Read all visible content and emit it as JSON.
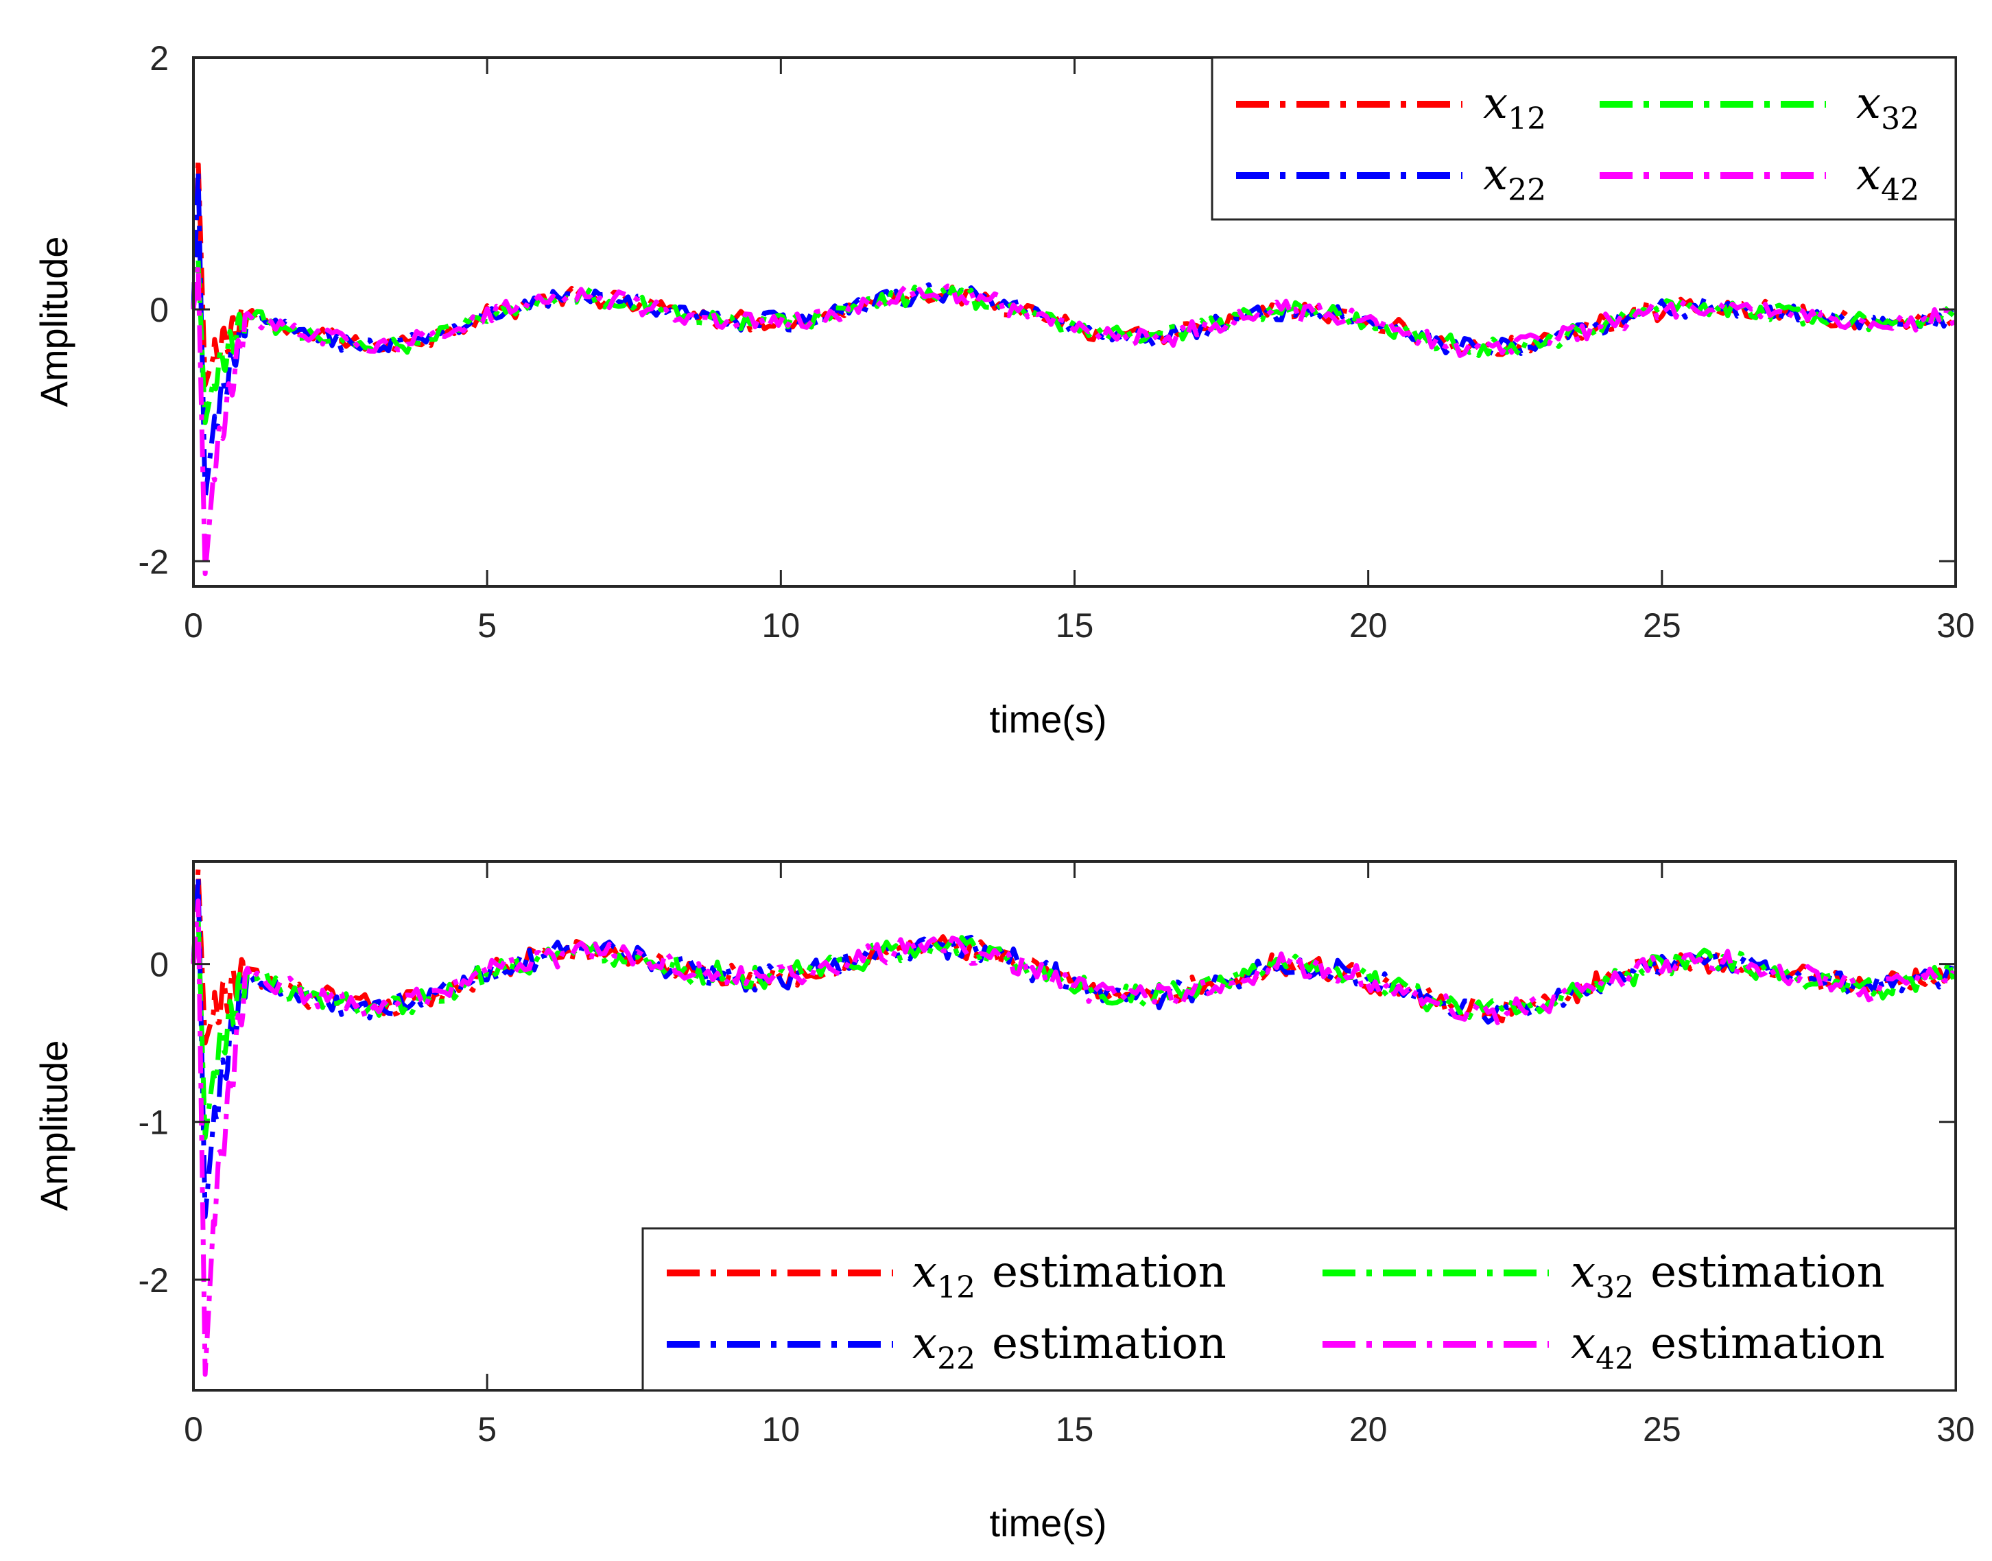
{
  "chart_data": [
    {
      "type": "line",
      "title": "",
      "xlabel": "time(s)",
      "ylabel": "Amplitude",
      "xlim": [
        0,
        30
      ],
      "ylim": [
        -2.2,
        2
      ],
      "xticks": [
        0,
        5,
        10,
        15,
        20,
        25,
        30
      ],
      "xtick_labels": [
        "0",
        "5",
        "10",
        "15",
        "20",
        "25",
        "30"
      ],
      "yticks": [
        -2,
        0,
        2
      ],
      "ytick_labels": [
        "-2",
        "0",
        "2"
      ],
      "grid": false,
      "legend_position": "top-right",
      "legend_columns": 2,
      "series": [
        {
          "name": "x12",
          "symbol": "x",
          "subscript": "12",
          "suffix": "",
          "color": "#ff0000",
          "line_style": "dash-dot"
        },
        {
          "name": "x22",
          "symbol": "x",
          "subscript": "22",
          "suffix": "",
          "color": "#0000ff",
          "line_style": "dash-dot"
        },
        {
          "name": "x32",
          "symbol": "x",
          "subscript": "32",
          "suffix": "",
          "color": "#00ff00",
          "line_style": "dash-dot"
        },
        {
          "name": "x42",
          "symbol": "x",
          "subscript": "42",
          "suffix": "",
          "color": "#ff00ff",
          "line_style": "dash-dot"
        }
      ],
      "trend": {
        "x": [
          0,
          0.8,
          1.5,
          2.5,
          3.2,
          4.0,
          5.0,
          6.0,
          6.8,
          7.5,
          8.5,
          9.5,
          10.5,
          11.5,
          12.3,
          12.8,
          13.5,
          14.5,
          15.3,
          16.5,
          17.5,
          18.5,
          19.5,
          20.5,
          21.5,
          22.2,
          23.0,
          24.0,
          25.0,
          25.7,
          26.5,
          27.5,
          28.5,
          29.3,
          30.0
        ],
        "y": [
          0,
          -0.05,
          -0.15,
          -0.25,
          -0.3,
          -0.22,
          -0.05,
          0.08,
          0.1,
          0.05,
          -0.05,
          -0.1,
          -0.08,
          0.05,
          0.12,
          0.13,
          0.07,
          -0.05,
          -0.2,
          -0.22,
          -0.12,
          0.0,
          -0.05,
          -0.15,
          -0.3,
          -0.32,
          -0.25,
          -0.12,
          0.0,
          0.02,
          0.0,
          -0.05,
          -0.12,
          -0.1,
          -0.05
        ]
      },
      "transient_peaks": {
        "x12": [
          1.2,
          -0.6
        ],
        "x22": [
          1.1,
          -1.5
        ],
        "x32": [
          0.4,
          -0.9
        ],
        "x42": [
          0.35,
          -2.1
        ]
      }
    },
    {
      "type": "line",
      "title": "",
      "xlabel": "time(s)",
      "ylabel": "Amplitude",
      "xlim": [
        0,
        30
      ],
      "ylim": [
        -2.7,
        0.65
      ],
      "xticks": [
        0,
        5,
        10,
        15,
        20,
        25,
        30
      ],
      "xtick_labels": [
        "0",
        "5",
        "10",
        "15",
        "20",
        "25",
        "30"
      ],
      "yticks": [
        -2,
        -1,
        0
      ],
      "ytick_labels": [
        "-2",
        "-1",
        "0"
      ],
      "grid": false,
      "legend_position": "bottom-right",
      "legend_columns": 2,
      "series": [
        {
          "name": "x12 estimation",
          "symbol": "x",
          "subscript": "12",
          "suffix": "estimation",
          "color": "#ff0000",
          "line_style": "dash-dot"
        },
        {
          "name": "x22 estimation",
          "symbol": "x",
          "subscript": "22",
          "suffix": "estimation",
          "color": "#0000ff",
          "line_style": "dash-dot"
        },
        {
          "name": "x32 estimation",
          "symbol": "x",
          "subscript": "32",
          "suffix": "estimation",
          "color": "#00ff00",
          "line_style": "dash-dot"
        },
        {
          "name": "x42 estimation",
          "symbol": "x",
          "subscript": "42",
          "suffix": "estimation",
          "color": "#ff00ff",
          "line_style": "dash-dot"
        }
      ],
      "trend": {
        "x": [
          0,
          0.8,
          1.5,
          2.5,
          3.2,
          4.0,
          5.0,
          6.0,
          6.8,
          7.5,
          8.5,
          9.5,
          10.5,
          11.5,
          12.3,
          12.8,
          13.5,
          14.5,
          15.3,
          16.5,
          17.5,
          18.5,
          19.5,
          20.5,
          21.5,
          22.2,
          23.0,
          24.0,
          25.0,
          25.7,
          26.5,
          27.5,
          28.5,
          29.3,
          30.0
        ],
        "y": [
          0,
          -0.05,
          -0.15,
          -0.25,
          -0.28,
          -0.22,
          -0.05,
          0.05,
          0.08,
          0.05,
          -0.05,
          -0.1,
          -0.05,
          0.05,
          0.1,
          0.12,
          0.07,
          -0.05,
          -0.18,
          -0.2,
          -0.12,
          0.0,
          -0.05,
          -0.15,
          -0.28,
          -0.3,
          -0.25,
          -0.12,
          0.0,
          0.02,
          -0.02,
          -0.08,
          -0.15,
          -0.1,
          -0.05
        ]
      },
      "transient_peaks": {
        "x12": [
          0.6,
          -0.5
        ],
        "x22": [
          0.55,
          -1.6
        ],
        "x32": [
          0.3,
          -1.1
        ],
        "x42": [
          0.4,
          -2.6
        ]
      }
    }
  ]
}
